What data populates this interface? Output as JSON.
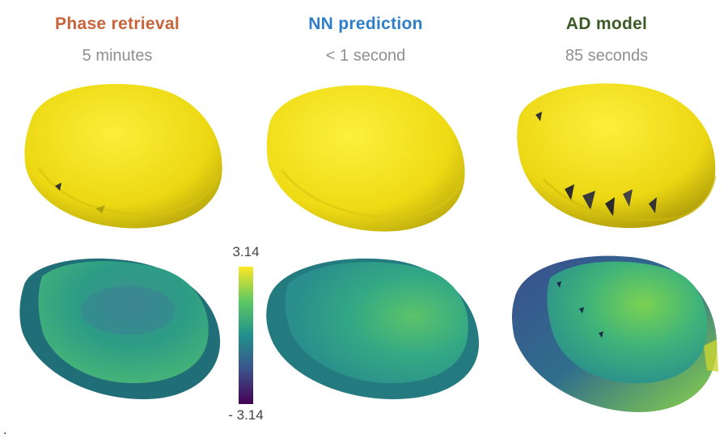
{
  "columns": [
    {
      "title": "Phase retrieval",
      "subtitle": "5 minutes",
      "color": "#c8643a"
    },
    {
      "title": "NN prediction",
      "subtitle": "< 1 second",
      "color": "#2f7fc8"
    },
    {
      "title": "AD model",
      "subtitle": "85 seconds",
      "color": "#3d5a26"
    }
  ],
  "colorbar": {
    "max_label": "3.14",
    "min_label": "- 3.14",
    "colormap": "viridis"
  },
  "rows": [
    "shape",
    "phase"
  ],
  "colors": {
    "shape_yellow": "#f5e31a",
    "shape_shadow": "#b9a80c",
    "viridis_mid": "#2a9c8a"
  },
  "footer_mark": "."
}
